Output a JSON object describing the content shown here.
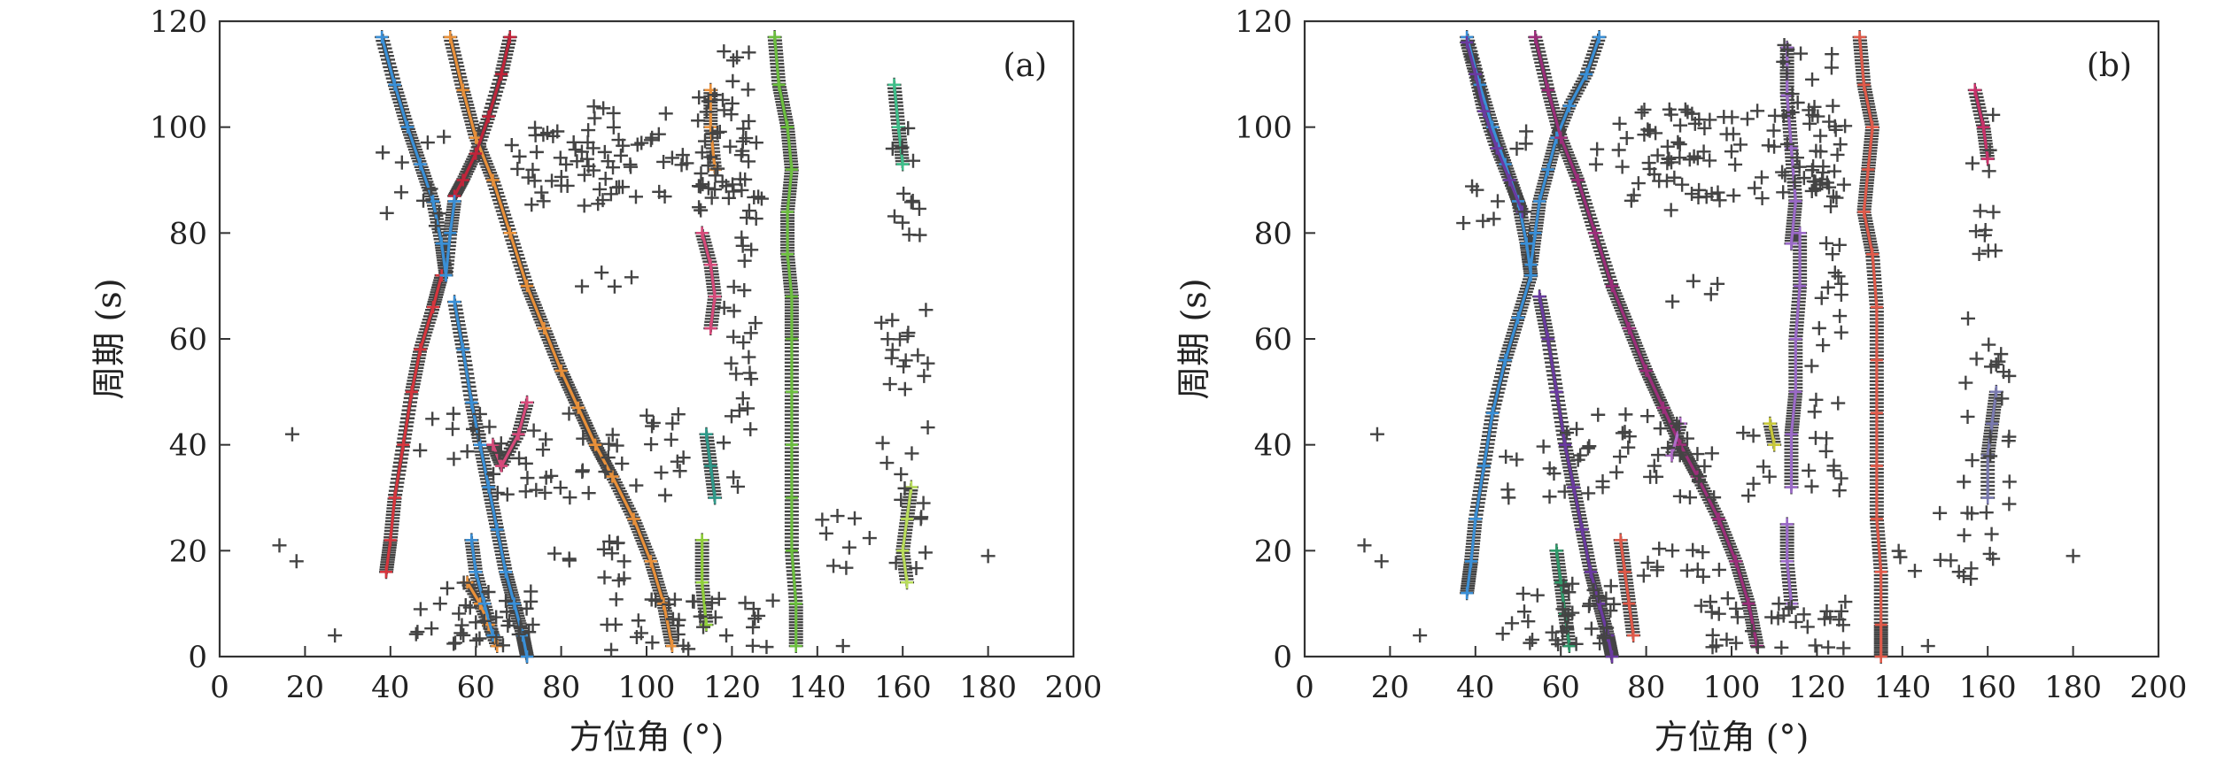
{
  "chart_data": [
    {
      "type": "scatter",
      "panel_label": "(a)",
      "xlabel": "方位角 (°)",
      "ylabel": "周期 (s)",
      "xlim": [
        0,
        200
      ],
      "ylim": [
        0,
        120
      ],
      "xticks": [
        0,
        20,
        40,
        60,
        80,
        100,
        120,
        140,
        160,
        180,
        200
      ],
      "yticks": [
        0,
        20,
        40,
        60,
        80,
        100,
        120
      ],
      "tracks": [
        {
          "color": "#3a8fd6",
          "points": [
            [
              38,
              117
            ],
            [
              41,
              108
            ],
            [
              44,
              100
            ],
            [
              47,
              93
            ],
            [
              50,
              86
            ],
            [
              52,
              78
            ],
            [
              53,
              72
            ]
          ]
        },
        {
          "color": "#d6353d",
          "points": [
            [
              52,
              72
            ],
            [
              50,
              66
            ],
            [
              47,
              58
            ],
            [
              45,
              50
            ],
            [
              43,
              40
            ],
            [
              41,
              30
            ],
            [
              40,
              22
            ],
            [
              39,
              16
            ]
          ]
        },
        {
          "color": "#3a8fd6",
          "points": [
            [
              55,
              67
            ],
            [
              57,
              58
            ],
            [
              59,
              48
            ],
            [
              61,
              40
            ],
            [
              63,
              32
            ],
            [
              65,
              24
            ],
            [
              67,
              16
            ],
            [
              69,
              10
            ],
            [
              71,
              4
            ],
            [
              72,
              0
            ]
          ]
        },
        {
          "color": "#e8903a",
          "points": [
            [
              54,
              117
            ],
            [
              57,
              107
            ],
            [
              60,
              98
            ],
            [
              64,
              90
            ],
            [
              68,
              80
            ],
            [
              72,
              70
            ],
            [
              76,
              62
            ],
            [
              80,
              54
            ],
            [
              84,
              47
            ],
            [
              88,
              40
            ],
            [
              92,
              34
            ],
            [
              97,
              26
            ],
            [
              101,
              18
            ],
            [
              104,
              10
            ],
            [
              106,
              2
            ]
          ]
        },
        {
          "color": "#c0243a",
          "points": [
            [
              68,
              117
            ],
            [
              66,
              110
            ],
            [
              63,
              102
            ],
            [
              60,
              95
            ],
            [
              57,
              90
            ],
            [
              55,
              87
            ]
          ]
        },
        {
          "color": "#3a8fd6",
          "points": [
            [
              55,
              86
            ],
            [
              54,
              80
            ],
            [
              53,
              72
            ]
          ]
        },
        {
          "color": "#e8903a",
          "points": [
            [
              58,
              14
            ],
            [
              61,
              10
            ],
            [
              63,
              6
            ],
            [
              65,
              2
            ]
          ]
        },
        {
          "color": "#3a8fd6",
          "points": [
            [
              59,
              22
            ],
            [
              60,
              16
            ],
            [
              62,
              10
            ],
            [
              64,
              4
            ]
          ]
        },
        {
          "color": "#d64a7a",
          "points": [
            [
              64,
              40
            ],
            [
              66,
              36
            ],
            [
              70,
              42
            ],
            [
              72,
              48
            ]
          ]
        },
        {
          "color": "#e8903a",
          "points": [
            [
              115,
              107
            ],
            [
              115,
              100
            ],
            [
              116,
              92
            ]
          ]
        },
        {
          "color": "#d64a7a",
          "points": [
            [
              113,
              80
            ],
            [
              115,
              74
            ],
            [
              116,
              68
            ],
            [
              115,
              62
            ]
          ]
        },
        {
          "color": "#2f9a8a",
          "points": [
            [
              114,
              42
            ],
            [
              115,
              36
            ],
            [
              116,
              30
            ]
          ]
        },
        {
          "color": "#8fcf3a",
          "points": [
            [
              113,
              22
            ],
            [
              113,
              14
            ],
            [
              114,
              6
            ]
          ]
        },
        {
          "color": "#6cbf3f",
          "points": [
            [
              130,
              117
            ],
            [
              131,
              108
            ],
            [
              133,
              100
            ],
            [
              134,
              92
            ],
            [
              133,
              84
            ],
            [
              133,
              76
            ],
            [
              134,
              68
            ],
            [
              134,
              60
            ],
            [
              134,
              50
            ],
            [
              134,
              40
            ],
            [
              134,
              30
            ],
            [
              134,
              20
            ],
            [
              135,
              10
            ],
            [
              135,
              2
            ]
          ]
        },
        {
          "color": "#3fbf8a",
          "points": [
            [
              158,
              108
            ],
            [
              159,
              100
            ],
            [
              160,
              93
            ]
          ]
        },
        {
          "color": "#b8dc5a",
          "points": [
            [
              162,
              32
            ],
            [
              161,
              26
            ],
            [
              160,
              20
            ],
            [
              161,
              14
            ]
          ]
        }
      ]
    },
    {
      "type": "scatter",
      "panel_label": "(b)",
      "xlabel": "方位角 (°)",
      "ylabel": "周期 (s)",
      "xlim": [
        0,
        200
      ],
      "ylim": [
        0,
        120
      ],
      "xticks": [
        0,
        20,
        40,
        60,
        80,
        100,
        120,
        140,
        160,
        180,
        200
      ],
      "yticks": [
        0,
        20,
        40,
        60,
        80,
        100,
        120
      ],
      "tracks": [
        {
          "color": "#3a8fd6",
          "points": [
            [
              38,
              117
            ],
            [
              41,
              108
            ],
            [
              44,
              100
            ],
            [
              47,
              93
            ],
            [
              50,
              86
            ],
            [
              52,
              78
            ],
            [
              53,
              72
            ],
            [
              50,
              64
            ],
            [
              47,
              56
            ],
            [
              44,
              46
            ],
            [
              42,
              36
            ],
            [
              40,
              26
            ],
            [
              39,
              18
            ],
            [
              38,
              12
            ]
          ]
        },
        {
          "color": "#3a8fd6",
          "points": [
            [
              69,
              117
            ],
            [
              66,
              110
            ],
            [
              62,
              104
            ],
            [
              59,
              98
            ],
            [
              57,
              92
            ],
            [
              55,
              86
            ],
            [
              54,
              80
            ],
            [
              53,
              74
            ]
          ]
        },
        {
          "color": "#6a3aa0",
          "points": [
            [
              38,
              116
            ],
            [
              40,
              110
            ],
            [
              42,
              103
            ],
            [
              45,
              96
            ],
            [
              48,
              90
            ],
            [
              51,
              84
            ]
          ]
        },
        {
          "color": "#6a3aa0",
          "points": [
            [
              55,
              68
            ],
            [
              57,
              60
            ],
            [
              59,
              50
            ],
            [
              61,
              40
            ],
            [
              63,
              32
            ],
            [
              65,
              24
            ],
            [
              67,
              16
            ],
            [
              69,
              10
            ],
            [
              71,
              4
            ],
            [
              72,
              0
            ]
          ]
        },
        {
          "color": "#9c2e7a",
          "points": [
            [
              54,
              117
            ],
            [
              57,
              107
            ],
            [
              60,
              98
            ],
            [
              64,
              90
            ],
            [
              68,
              80
            ],
            [
              72,
              70
            ],
            [
              76,
              62
            ],
            [
              80,
              54
            ],
            [
              84,
              47
            ],
            [
              88,
              40
            ],
            [
              92,
              34
            ],
            [
              97,
              26
            ],
            [
              101,
              18
            ],
            [
              104,
              10
            ],
            [
              106,
              2
            ]
          ]
        },
        {
          "color": "#e05a4a",
          "points": [
            [
              130,
              117
            ],
            [
              131,
              108
            ],
            [
              133,
              100
            ],
            [
              132,
              92
            ],
            [
              131,
              84
            ],
            [
              133,
              76
            ],
            [
              134,
              66
            ],
            [
              134,
              56
            ],
            [
              134,
              46
            ],
            [
              134,
              36
            ],
            [
              134,
              26
            ],
            [
              135,
              16
            ],
            [
              135,
              6
            ],
            [
              135,
              0
            ]
          ]
        },
        {
          "color": "#c8326a",
          "points": [
            [
              157,
              107
            ],
            [
              159,
              100
            ],
            [
              160,
              94
            ]
          ]
        },
        {
          "color": "#9b6ac8",
          "points": [
            [
              113,
              115
            ],
            [
              113,
              106
            ],
            [
              114,
              96
            ],
            [
              115,
              86
            ],
            [
              114,
              78
            ]
          ]
        },
        {
          "color": "#9b6ac8",
          "points": [
            [
              116,
              80
            ],
            [
              116,
              70
            ],
            [
              115,
              60
            ],
            [
              115,
              50
            ],
            [
              114,
              42
            ],
            [
              114,
              32
            ]
          ]
        },
        {
          "color": "#9b6ac8",
          "points": [
            [
              113,
              25
            ],
            [
              113,
              18
            ],
            [
              114,
              10
            ]
          ]
        },
        {
          "color": "#e05a4a",
          "points": [
            [
              74,
              22
            ],
            [
              75,
              16
            ],
            [
              76,
              10
            ],
            [
              77,
              4
            ]
          ]
        },
        {
          "color": "#2f9a6a",
          "points": [
            [
              59,
              20
            ],
            [
              60,
              14
            ],
            [
              61,
              8
            ],
            [
              62,
              2
            ]
          ]
        },
        {
          "color": "#7a7ab0",
          "points": [
            [
              162,
              50
            ],
            [
              161,
              44
            ],
            [
              160,
              38
            ],
            [
              160,
              30
            ]
          ]
        },
        {
          "color": "#b06ac8",
          "points": [
            [
              88,
              44
            ],
            [
              86,
              38
            ]
          ]
        },
        {
          "color": "#c8c83a",
          "points": [
            [
              109,
              44
            ],
            [
              110,
              40
            ]
          ]
        }
      ]
    }
  ]
}
